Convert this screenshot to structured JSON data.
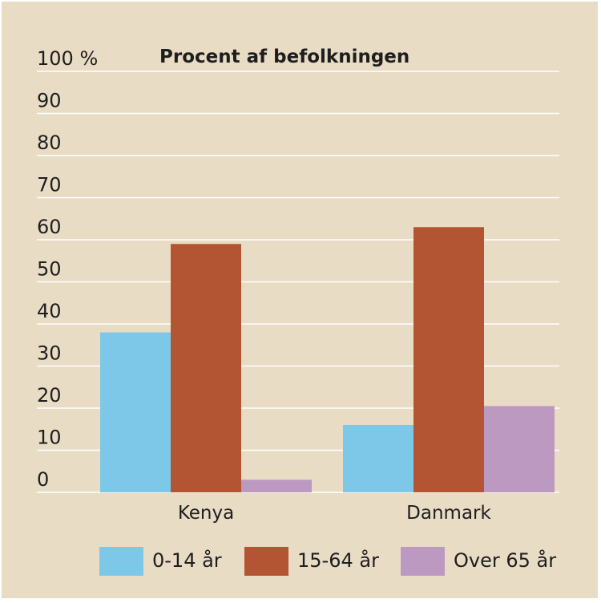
{
  "chart_data": {
    "type": "bar",
    "title": "Procent af befolkningen",
    "y_unit": "%",
    "ylim": [
      0,
      100
    ],
    "y_ticks": [
      0,
      10,
      20,
      30,
      40,
      50,
      60,
      70,
      80,
      90,
      100
    ],
    "grid": true,
    "legend_position": "bottom",
    "categories": [
      "Kenya",
      "Danmark"
    ],
    "series": [
      {
        "name": "0-14 år",
        "color": "#7dc8e8",
        "values": [
          38,
          16
        ]
      },
      {
        "name": "15-64 år",
        "color": "#b35432",
        "values": [
          59,
          63
        ]
      },
      {
        "name": "Over 65 år",
        "color": "#bc99c0",
        "values": [
          3,
          20.5
        ]
      }
    ]
  }
}
